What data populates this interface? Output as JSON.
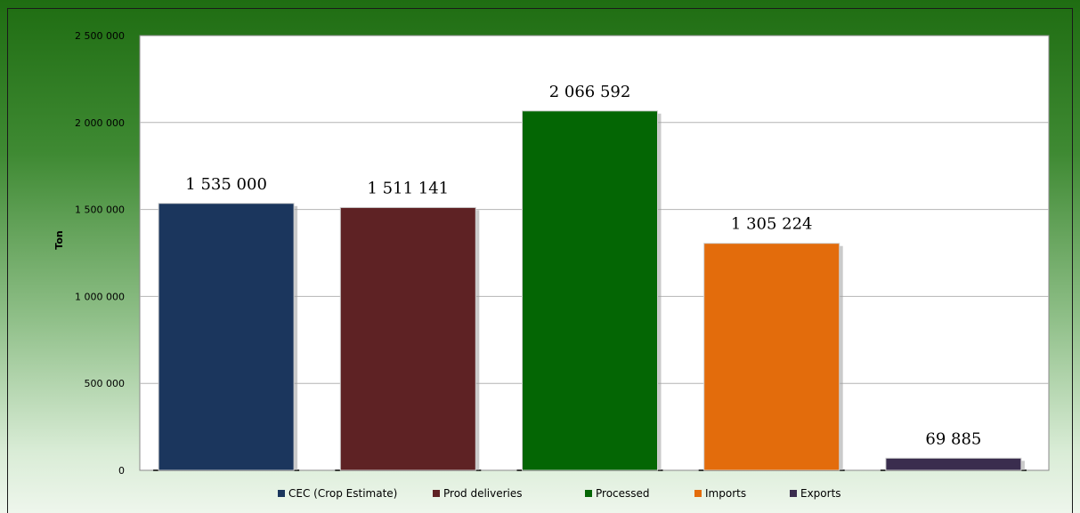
{
  "chart_data": {
    "type": "bar",
    "title": "",
    "xlabel": "",
    "ylabel": "Ton",
    "ylim": [
      0,
      2500000
    ],
    "yticks": [
      0,
      500000,
      1000000,
      1500000,
      2000000,
      2500000
    ],
    "ytick_labels": [
      "0",
      "500 000",
      "1 000 000",
      "1 500 000",
      "2 000 000",
      "2 500 000"
    ],
    "grid": true,
    "legend_position": "bottom",
    "categories": [
      "CEC (Crop Estimate)",
      "Prod deliveries",
      "Processed",
      "Imports",
      "Exports"
    ],
    "values": [
      1535000,
      1511141,
      2066592,
      1305224,
      69885
    ],
    "data_labels": [
      "1 535 000",
      "1 511 141",
      "2 066 592",
      "1 305 224",
      "69 885"
    ],
    "colors": [
      "#1b365d",
      "#5e2224",
      "#046604",
      "#e36c0c",
      "#3a2d4e"
    ]
  }
}
